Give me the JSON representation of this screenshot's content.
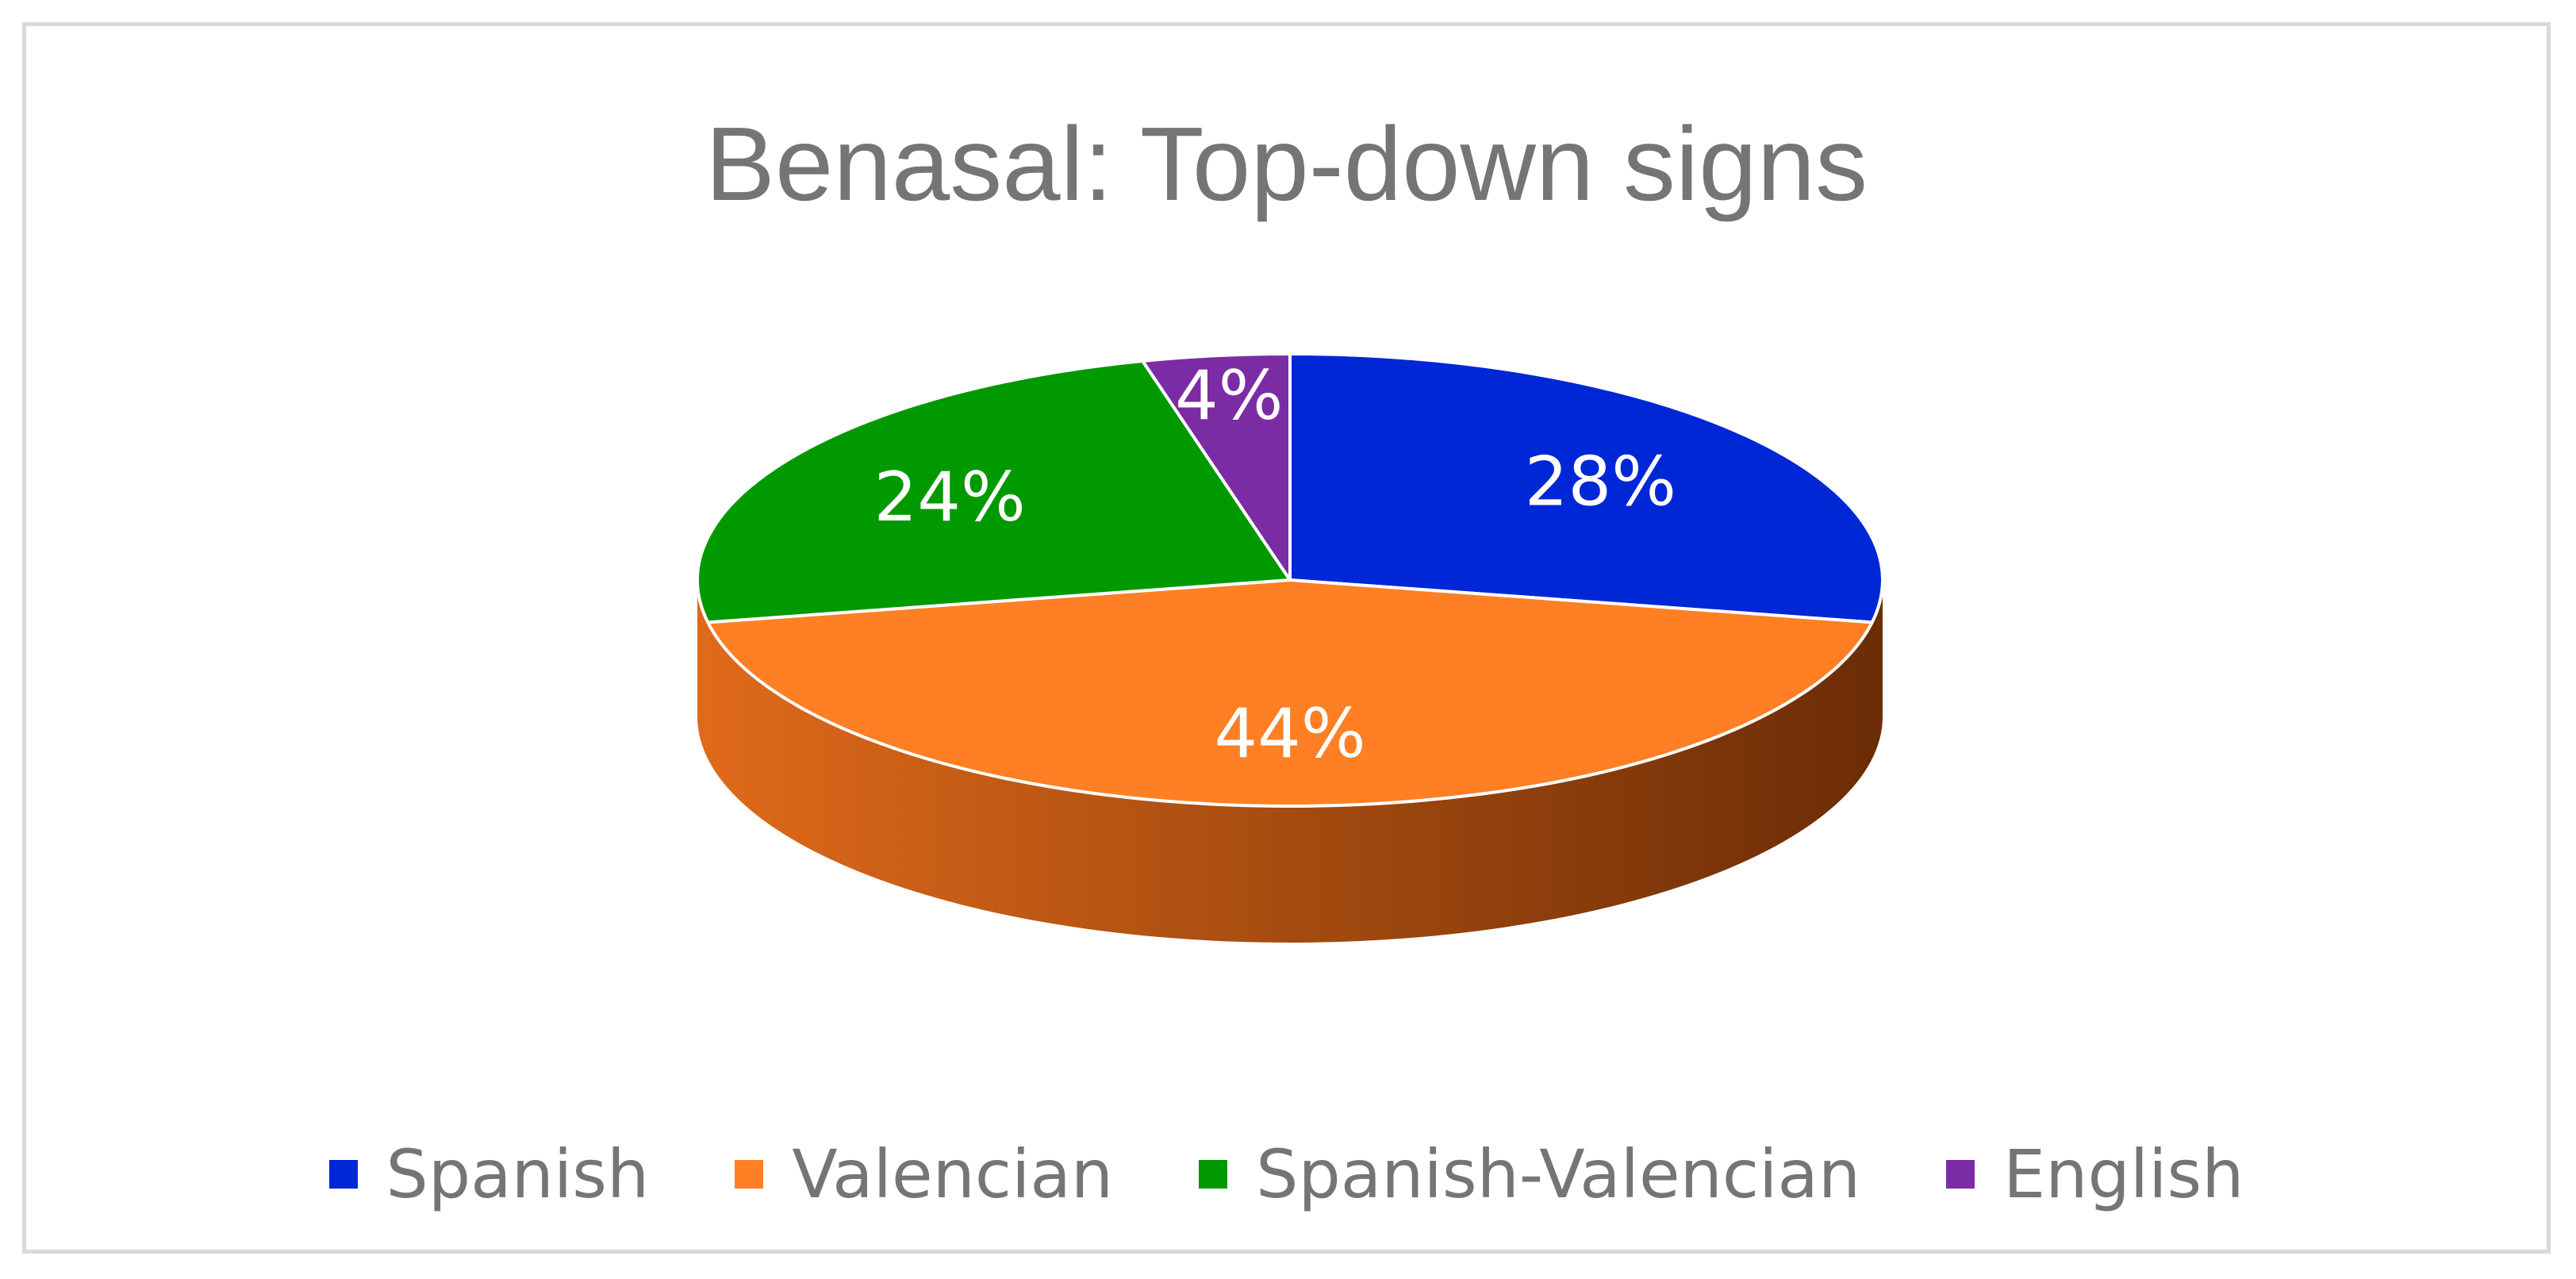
{
  "chart_data": {
    "type": "pie",
    "title": "Benasal: Top-down signs",
    "categories": [
      "Spanish",
      "Valencian",
      "Spanish-Valencian",
      "English"
    ],
    "values": [
      28,
      44,
      24,
      4
    ],
    "data_labels": [
      "28%",
      "44%",
      "24%",
      "4%"
    ],
    "colors": [
      "#0027d6",
      "#ff7f24",
      "#009900",
      "#7b2ca5"
    ],
    "side_colors": {
      "light": "#e06a1a",
      "dark": "#6b2c06"
    },
    "start": "12 o'clock, clockwise",
    "style": "3d",
    "legend_position": "bottom"
  }
}
